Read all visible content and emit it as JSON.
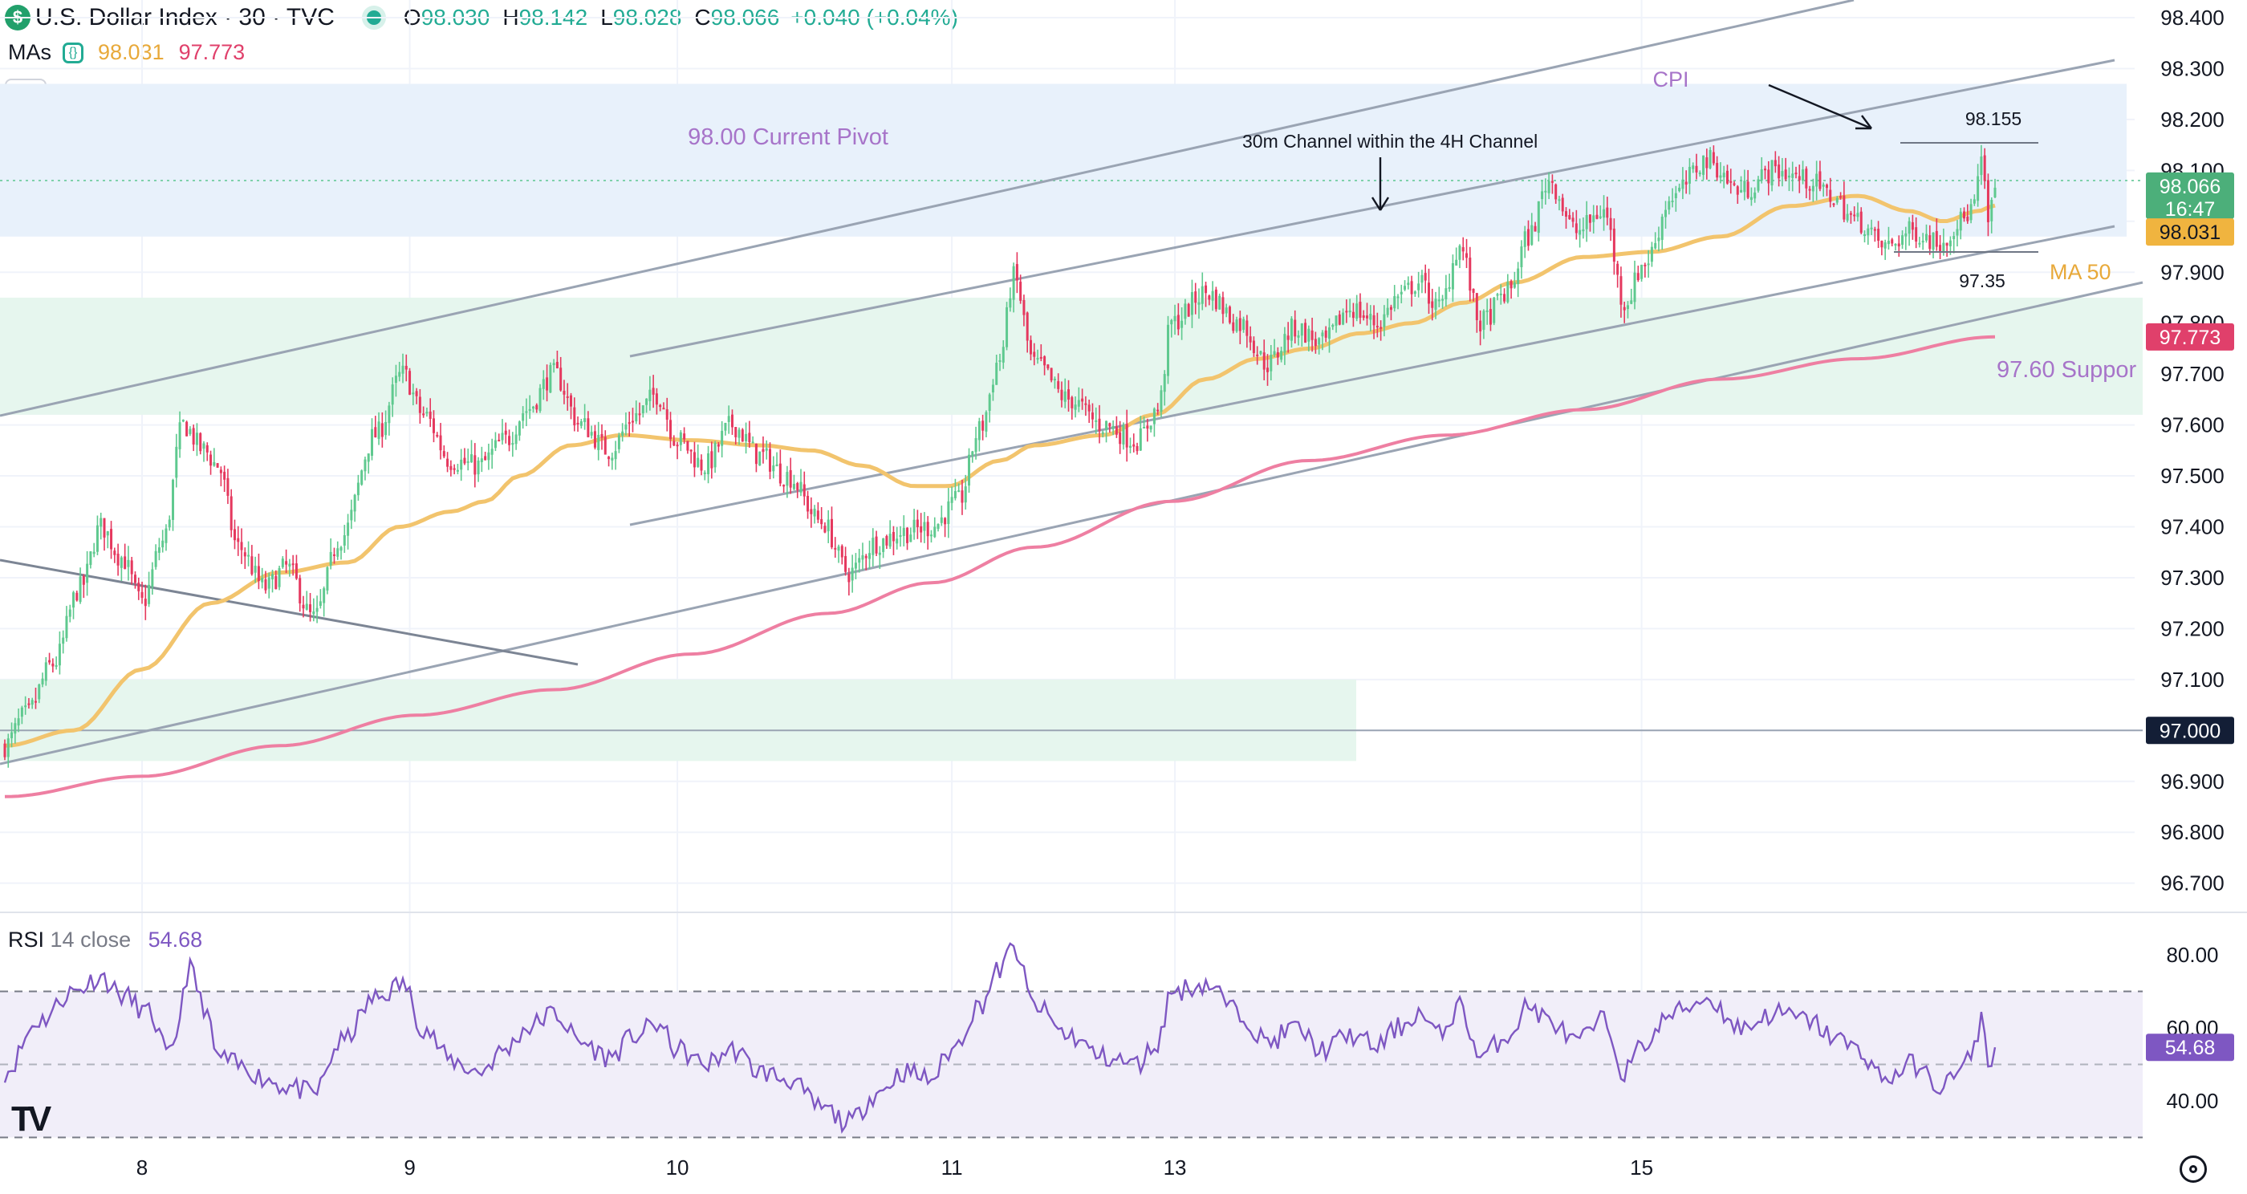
{
  "header": {
    "symbol": "U.S. Dollar Index · 30 · TVC",
    "logo_glyph": "$",
    "open_label": "O",
    "open": "98.030",
    "high_label": "H",
    "high": "98.142",
    "low_label": "L",
    "low": "98.028",
    "close_label": "C",
    "close": "98.066",
    "change": "+0.040 (+0.04%)"
  },
  "mas": {
    "label": "MAs",
    "ma50_value": "98.031",
    "ma200_value": "97.773"
  },
  "rsi": {
    "label": "RSI",
    "params": "14 close",
    "value": "54.68"
  },
  "colors": {
    "up": "#5fc98f",
    "down": "#e5385e",
    "ma50": "#f2c46d",
    "ma200": "#ee7fa2",
    "rsi": "#7e57c2",
    "channel": "#9aa4b3",
    "annotation": "#a774c9"
  },
  "annotations": {
    "pivot_zone": "98.00 Current Pivot",
    "support_zone": "97.60 Suppor",
    "cpi": "CPI",
    "channel_note": "30m Channel within the 4H Channel",
    "high_mark": "98.155",
    "low_mark": "97.35",
    "ma50_tag": "MA 50"
  },
  "price_labels": {
    "current": "98.066",
    "countdown": "16:47",
    "ma50": "98.031",
    "ma200": "97.773",
    "level": "97.000"
  },
  "chart_data": [
    {
      "type": "candlestick",
      "title": "U.S. Dollar Index · 30 · TVC",
      "x_ticks": [
        "8",
        "9",
        "10",
        "11",
        "13",
        "15"
      ],
      "y_ticks": [
        "98.400",
        "98.300",
        "98.200",
        "98.100",
        "98.000",
        "97.900",
        "97.800",
        "97.700",
        "97.600",
        "97.500",
        "97.400",
        "97.300",
        "97.200",
        "97.100",
        "97.000",
        "96.900",
        "96.800",
        "96.700"
      ],
      "ylim": [
        96.65,
        98.43
      ],
      "grid": true,
      "zones": [
        {
          "label": "98.00 Current Pivot",
          "from": 97.97,
          "to": 98.27
        },
        {
          "label": "97.60 Suppor",
          "from": 97.62,
          "to": 97.85
        },
        {
          "label": "",
          "from": 96.94,
          "to": 97.1
        }
      ],
      "horizontal_levels": [
        97.0
      ],
      "close_key_points": [
        [
          0,
          96.97
        ],
        [
          6,
          97.03
        ],
        [
          14,
          97.13
        ],
        [
          22,
          97.28
        ],
        [
          28,
          97.4
        ],
        [
          34,
          97.34
        ],
        [
          40,
          97.25
        ],
        [
          46,
          97.37
        ],
        [
          52,
          97.6
        ],
        [
          58,
          97.55
        ],
        [
          62,
          97.52
        ],
        [
          68,
          97.36
        ],
        [
          76,
          97.28
        ],
        [
          82,
          97.32
        ],
        [
          90,
          97.22
        ],
        [
          98,
          97.38
        ],
        [
          108,
          97.58
        ],
        [
          116,
          97.7
        ],
        [
          122,
          97.62
        ],
        [
          130,
          97.53
        ],
        [
          138,
          97.52
        ],
        [
          146,
          97.57
        ],
        [
          152,
          97.63
        ],
        [
          160,
          97.7
        ],
        [
          168,
          97.6
        ],
        [
          176,
          97.55
        ],
        [
          184,
          97.62
        ],
        [
          190,
          97.66
        ],
        [
          196,
          97.57
        ],
        [
          204,
          97.52
        ],
        [
          212,
          97.6
        ],
        [
          220,
          97.54
        ],
        [
          228,
          97.5
        ],
        [
          238,
          97.41
        ],
        [
          246,
          97.31
        ],
        [
          254,
          97.37
        ],
        [
          262,
          97.39
        ],
        [
          270,
          97.4
        ],
        [
          278,
          97.45
        ],
        [
          284,
          97.59
        ],
        [
          290,
          97.73
        ],
        [
          294,
          97.89
        ],
        [
          300,
          97.72
        ],
        [
          310,
          97.65
        ],
        [
          320,
          97.6
        ],
        [
          330,
          97.57
        ],
        [
          336,
          97.63
        ],
        [
          340,
          97.8
        ],
        [
          350,
          97.86
        ],
        [
          360,
          97.8
        ],
        [
          368,
          97.72
        ],
        [
          376,
          97.79
        ],
        [
          384,
          97.76
        ],
        [
          392,
          97.83
        ],
        [
          400,
          97.8
        ],
        [
          406,
          97.85
        ],
        [
          412,
          97.88
        ],
        [
          418,
          97.83
        ],
        [
          424,
          97.95
        ],
        [
          430,
          97.8
        ],
        [
          438,
          97.86
        ],
        [
          444,
          97.97
        ],
        [
          450,
          98.08
        ],
        [
          458,
          97.98
        ],
        [
          466,
          98.02
        ],
        [
          472,
          97.84
        ],
        [
          478,
          97.92
        ],
        [
          486,
          98.05
        ],
        [
          496,
          98.12
        ],
        [
          506,
          98.06
        ],
        [
          516,
          98.1
        ],
        [
          526,
          98.08
        ],
        [
          532,
          98.05
        ],
        [
          540,
          98.0
        ],
        [
          548,
          97.95
        ],
        [
          556,
          97.98
        ],
        [
          564,
          97.96
        ],
        [
          570,
          98.0
        ],
        [
          574,
          98.03
        ],
        [
          576,
          98.12
        ],
        [
          578,
          98.0
        ],
        [
          580,
          98.066
        ]
      ]
    },
    {
      "type": "line",
      "title": "MA 50",
      "key_points": [
        [
          0,
          96.97
        ],
        [
          20,
          97.0
        ],
        [
          40,
          97.12
        ],
        [
          60,
          97.25
        ],
        [
          80,
          97.31
        ],
        [
          100,
          97.33
        ],
        [
          115,
          97.4
        ],
        [
          130,
          97.43
        ],
        [
          140,
          97.45
        ],
        [
          150,
          97.5
        ],
        [
          165,
          97.56
        ],
        [
          180,
          97.58
        ],
        [
          200,
          97.57
        ],
        [
          220,
          97.56
        ],
        [
          235,
          97.55
        ],
        [
          250,
          97.52
        ],
        [
          265,
          97.48
        ],
        [
          275,
          97.48
        ],
        [
          290,
          97.53
        ],
        [
          300,
          97.56
        ],
        [
          320,
          97.58
        ],
        [
          335,
          97.62
        ],
        [
          350,
          97.69
        ],
        [
          365,
          97.73
        ],
        [
          380,
          97.75
        ],
        [
          395,
          97.78
        ],
        [
          410,
          97.8
        ],
        [
          425,
          97.84
        ],
        [
          440,
          97.88
        ],
        [
          460,
          97.93
        ],
        [
          480,
          97.94
        ],
        [
          500,
          97.97
        ],
        [
          520,
          98.03
        ],
        [
          540,
          98.05
        ],
        [
          555,
          98.02
        ],
        [
          565,
          98.0
        ],
        [
          575,
          98.02
        ],
        [
          580,
          98.031
        ]
      ]
    },
    {
      "type": "line",
      "title": "MA 200",
      "key_points": [
        [
          0,
          96.87
        ],
        [
          40,
          96.91
        ],
        [
          80,
          96.97
        ],
        [
          120,
          97.03
        ],
        [
          160,
          97.08
        ],
        [
          200,
          97.15
        ],
        [
          240,
          97.23
        ],
        [
          270,
          97.29
        ],
        [
          300,
          97.36
        ],
        [
          340,
          97.45
        ],
        [
          380,
          97.53
        ],
        [
          420,
          97.58
        ],
        [
          460,
          97.63
        ],
        [
          500,
          97.69
        ],
        [
          540,
          97.73
        ],
        [
          580,
          97.773
        ]
      ]
    },
    {
      "type": "line",
      "title": "RSI 14 close",
      "y_ticks": [
        "80.00",
        "60.00",
        "40.00"
      ],
      "bands": [
        30,
        70,
        50
      ],
      "key_points": [
        [
          0,
          48
        ],
        [
          10,
          62
        ],
        [
          20,
          70
        ],
        [
          28,
          74
        ],
        [
          34,
          69
        ],
        [
          42,
          64
        ],
        [
          48,
          52
        ],
        [
          54,
          76
        ],
        [
          58,
          66
        ],
        [
          62,
          52
        ],
        [
          70,
          49
        ],
        [
          76,
          46
        ],
        [
          82,
          44
        ],
        [
          90,
          42
        ],
        [
          98,
          56
        ],
        [
          108,
          68
        ],
        [
          116,
          72
        ],
        [
          122,
          60
        ],
        [
          130,
          51
        ],
        [
          138,
          48
        ],
        [
          146,
          54
        ],
        [
          152,
          60
        ],
        [
          160,
          64
        ],
        [
          168,
          56
        ],
        [
          176,
          52
        ],
        [
          184,
          58
        ],
        [
          190,
          61
        ],
        [
          196,
          54
        ],
        [
          204,
          50
        ],
        [
          212,
          54
        ],
        [
          220,
          48
        ],
        [
          228,
          46
        ],
        [
          238,
          38
        ],
        [
          246,
          34
        ],
        [
          254,
          42
        ],
        [
          262,
          48
        ],
        [
          270,
          46
        ],
        [
          276,
          54
        ],
        [
          284,
          66
        ],
        [
          290,
          76
        ],
        [
          294,
          82
        ],
        [
          300,
          66
        ],
        [
          310,
          58
        ],
        [
          320,
          52
        ],
        [
          330,
          50
        ],
        [
          336,
          56
        ],
        [
          340,
          70
        ],
        [
          350,
          72
        ],
        [
          360,
          64
        ],
        [
          368,
          56
        ],
        [
          376,
          60
        ],
        [
          384,
          54
        ],
        [
          392,
          58
        ],
        [
          400,
          55
        ],
        [
          406,
          60
        ],
        [
          412,
          64
        ],
        [
          418,
          58
        ],
        [
          424,
          66
        ],
        [
          430,
          52
        ],
        [
          438,
          58
        ],
        [
          444,
          66
        ],
        [
          450,
          62
        ],
        [
          458,
          56
        ],
        [
          466,
          62
        ],
        [
          472,
          48
        ],
        [
          478,
          56
        ],
        [
          486,
          64
        ],
        [
          496,
          68
        ],
        [
          506,
          60
        ],
        [
          516,
          64
        ],
        [
          526,
          62
        ],
        [
          532,
          58
        ],
        [
          540,
          54
        ],
        [
          548,
          46
        ],
        [
          556,
          50
        ],
        [
          564,
          44
        ],
        [
          570,
          48
        ],
        [
          574,
          54
        ],
        [
          576,
          64
        ],
        [
          578,
          50
        ],
        [
          580,
          54.68
        ]
      ]
    }
  ]
}
